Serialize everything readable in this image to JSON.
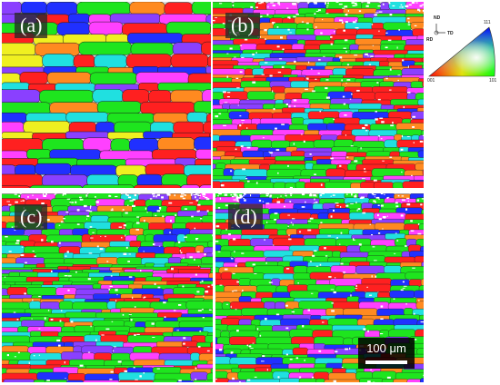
{
  "panels": [
    {
      "label": "(a)",
      "seed": 11,
      "style": "coarse"
    },
    {
      "label": "(b)",
      "seed": 23,
      "style": "deformed"
    },
    {
      "label": "(c)",
      "seed": 37,
      "style": "fine"
    },
    {
      "label": "(d)",
      "seed": 51,
      "style": "fine"
    }
  ],
  "ipf_key": {
    "axes": {
      "nd": "ND",
      "td": "TD",
      "rd": "RD"
    },
    "corners": {
      "c001": "001",
      "c101": "101",
      "c111": "111"
    }
  },
  "scale_bar": {
    "text": "100 μm"
  },
  "colors": {
    "red": "#ff2020",
    "green": "#1ee51e",
    "blue": "#2030ff",
    "cyan": "#20e0e0",
    "magenta": "#ff40ff",
    "yellow": "#f0f020",
    "orange": "#ff8a20",
    "purple": "#8a40ff"
  }
}
